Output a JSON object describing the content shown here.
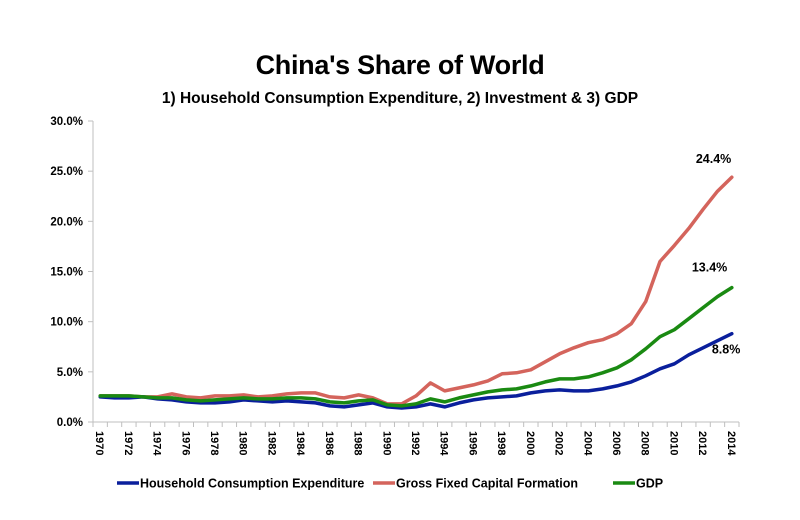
{
  "chart_data": {
    "type": "line",
    "title": "China's Share of World",
    "subtitle": "1) Household Consumption Expenditure, 2) Investment & 3) GDP",
    "xlabel": "",
    "ylabel": "",
    "ylim": [
      0,
      30
    ],
    "y_ticks": [
      "0.0%",
      "5.0%",
      "10.0%",
      "15.0%",
      "20.0%",
      "25.0%",
      "30.0%"
    ],
    "y_tick_values": [
      0,
      5,
      10,
      15,
      20,
      25,
      30
    ],
    "x": [
      1970,
      1971,
      1972,
      1973,
      1974,
      1975,
      1976,
      1977,
      1978,
      1979,
      1980,
      1981,
      1982,
      1983,
      1984,
      1985,
      1986,
      1987,
      1988,
      1989,
      1990,
      1991,
      1992,
      1993,
      1994,
      1995,
      1996,
      1997,
      1998,
      1999,
      2000,
      2001,
      2002,
      2003,
      2004,
      2005,
      2006,
      2007,
      2008,
      2009,
      2010,
      2011,
      2012,
      2013,
      2014
    ],
    "x_tick_labels": [
      "1970",
      "1972",
      "1974",
      "1976",
      "1978",
      "1980",
      "1982",
      "1984",
      "1986",
      "1988",
      "1990",
      "1992",
      "1994",
      "1996",
      "1998",
      "2000",
      "2002",
      "2004",
      "2006",
      "2008",
      "2010",
      "2012",
      "2014"
    ],
    "grid": false,
    "legend_position": "bottom",
    "series": [
      {
        "name": "Household Consumption Expenditure",
        "color": "#0a1f9c",
        "values": [
          2.5,
          2.4,
          2.4,
          2.5,
          2.3,
          2.2,
          2.0,
          1.9,
          1.9,
          2.0,
          2.2,
          2.1,
          2.0,
          2.1,
          2.0,
          1.9,
          1.6,
          1.5,
          1.7,
          1.9,
          1.5,
          1.4,
          1.5,
          1.8,
          1.5,
          1.9,
          2.2,
          2.4,
          2.5,
          2.6,
          2.9,
          3.1,
          3.2,
          3.1,
          3.1,
          3.3,
          3.6,
          4.0,
          4.6,
          5.3,
          5.8,
          6.7,
          7.4,
          8.1,
          8.8
        ],
        "end_label": "8.8%"
      },
      {
        "name": "Gross Fixed Capital Formation",
        "color": "#d4645c",
        "values": [
          2.6,
          2.6,
          2.6,
          2.5,
          2.5,
          2.8,
          2.5,
          2.4,
          2.6,
          2.6,
          2.7,
          2.5,
          2.6,
          2.8,
          2.9,
          2.9,
          2.5,
          2.4,
          2.7,
          2.4,
          1.8,
          1.8,
          2.6,
          3.9,
          3.1,
          3.4,
          3.7,
          4.1,
          4.8,
          4.9,
          5.2,
          6.0,
          6.8,
          7.4,
          7.9,
          8.2,
          8.8,
          9.8,
          12.0,
          16.0,
          17.6,
          19.3,
          21.2,
          23.0,
          24.4
        ],
        "end_label": "24.4%"
      },
      {
        "name": "GDP",
        "color": "#1a8a12",
        "values": [
          2.6,
          2.6,
          2.6,
          2.5,
          2.4,
          2.4,
          2.2,
          2.1,
          2.2,
          2.3,
          2.4,
          2.3,
          2.3,
          2.4,
          2.4,
          2.3,
          2.0,
          1.9,
          2.1,
          2.2,
          1.7,
          1.6,
          1.8,
          2.3,
          2.0,
          2.4,
          2.7,
          3.0,
          3.2,
          3.3,
          3.6,
          4.0,
          4.3,
          4.3,
          4.5,
          4.9,
          5.4,
          6.2,
          7.3,
          8.5,
          9.2,
          10.3,
          11.4,
          12.5,
          13.4
        ],
        "end_label": "13.4%"
      }
    ]
  }
}
